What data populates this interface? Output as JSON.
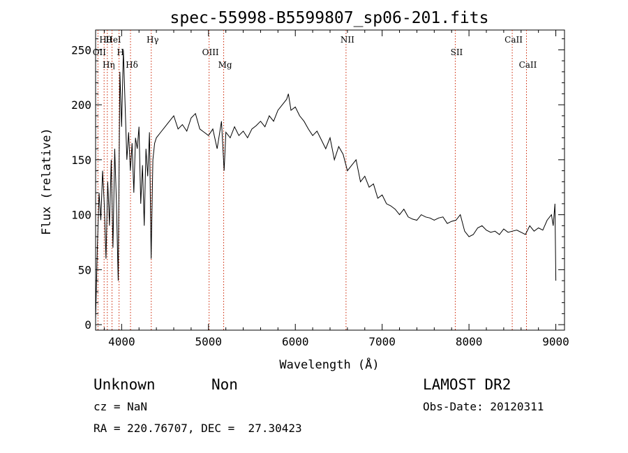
{
  "chart_data": {
    "type": "line",
    "title": "spec-55998-B5599807_sp06-201.fits",
    "xlabel": "Wavelength (Å)",
    "ylabel": "Flux (relative)",
    "xlim": [
      3700,
      9100
    ],
    "ylim": [
      -5,
      268
    ],
    "x_ticks": [
      4000,
      5000,
      6000,
      7000,
      8000,
      9000
    ],
    "y_ticks": [
      0,
      50,
      100,
      150,
      200,
      250
    ],
    "grid": false,
    "line_color": "#000000",
    "marker_color": "#cc2200",
    "x": [
      3700,
      3720,
      3740,
      3760,
      3780,
      3800,
      3820,
      3840,
      3860,
      3880,
      3900,
      3920,
      3940,
      3960,
      3980,
      4000,
      4020,
      4040,
      4060,
      4080,
      4100,
      4120,
      4140,
      4160,
      4180,
      4200,
      4220,
      4240,
      4260,
      4280,
      4300,
      4320,
      4340,
      4360,
      4380,
      4400,
      4450,
      4500,
      4550,
      4600,
      4650,
      4700,
      4750,
      4800,
      4850,
      4900,
      4950,
      5000,
      5050,
      5100,
      5150,
      5180,
      5200,
      5250,
      5300,
      5350,
      5400,
      5450,
      5500,
      5550,
      5600,
      5650,
      5700,
      5750,
      5800,
      5850,
      5900,
      5920,
      5950,
      6000,
      6050,
      6100,
      6150,
      6200,
      6250,
      6300,
      6350,
      6400,
      6450,
      6500,
      6550,
      6600,
      6650,
      6700,
      6750,
      6800,
      6850,
      6900,
      6950,
      7000,
      7050,
      7100,
      7150,
      7200,
      7250,
      7300,
      7350,
      7400,
      7450,
      7500,
      7550,
      7600,
      7650,
      7700,
      7750,
      7800,
      7850,
      7900,
      7950,
      8000,
      8050,
      8100,
      8150,
      8200,
      8250,
      8300,
      8350,
      8400,
      8450,
      8500,
      8550,
      8600,
      8650,
      8700,
      8750,
      8800,
      8850,
      8900,
      8950,
      8970,
      8990,
      9000
    ],
    "y": [
      5,
      70,
      120,
      95,
      140,
      110,
      60,
      130,
      90,
      150,
      70,
      160,
      110,
      40,
      230,
      180,
      250,
      200,
      150,
      175,
      140,
      165,
      120,
      170,
      160,
      180,
      110,
      145,
      90,
      160,
      135,
      175,
      60,
      150,
      165,
      170,
      175,
      180,
      185,
      190,
      178,
      182,
      176,
      188,
      192,
      178,
      175,
      172,
      178,
      160,
      185,
      140,
      175,
      170,
      180,
      172,
      176,
      170,
      178,
      181,
      185,
      180,
      190,
      185,
      195,
      200,
      205,
      210,
      195,
      198,
      190,
      185,
      178,
      172,
      176,
      168,
      160,
      170,
      150,
      162,
      155,
      140,
      145,
      150,
      130,
      135,
      125,
      128,
      115,
      118,
      110,
      108,
      105,
      100,
      105,
      98,
      96,
      95,
      100,
      98,
      97,
      95,
      97,
      98,
      92,
      94,
      95,
      100,
      85,
      80,
      82,
      88,
      90,
      86,
      84,
      85,
      82,
      87,
      84,
      85,
      86,
      84,
      82,
      90,
      85,
      88,
      86,
      95,
      100,
      90,
      110,
      40
    ],
    "lines": [
      {
        "name": "Hθ",
        "x": 3798
      },
      {
        "name": "OII",
        "x": 3727
      },
      {
        "name": "Hη",
        "x": 3835
      },
      {
        "name": "HeI",
        "x": 3889
      },
      {
        "name": "H",
        "x": 3970
      },
      {
        "name": "Hδ",
        "x": 4102
      },
      {
        "name": "Hγ",
        "x": 4341
      },
      {
        "name": "OIII",
        "x": 5007
      },
      {
        "name": "Mg",
        "x": 5175
      },
      {
        "name": "NII",
        "x": 6584
      },
      {
        "name": "SII",
        "x": 7842
      },
      {
        "name": "CaII",
        "x": 8662
      },
      {
        "name": "CaII",
        "x": 8498
      }
    ]
  },
  "footer": {
    "object_class": "Unknown",
    "object_subclass": "Non",
    "cz": "cz = NaN",
    "coords": "RA = 220.76707, DEC =  27.30423",
    "survey": "LAMOST DR2",
    "obs_date": "Obs-Date: 20120311"
  }
}
